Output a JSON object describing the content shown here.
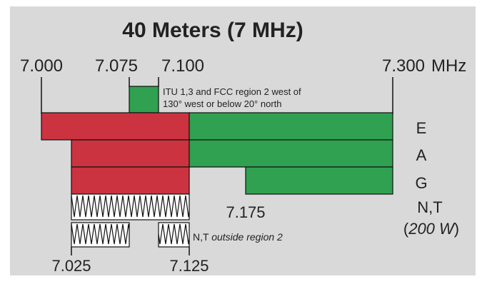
{
  "title": "40 Meters (7 MHz)",
  "unit": "MHz",
  "colors": {
    "background": "#d9d9d9",
    "red": "#cc3340",
    "green": "#2fa150",
    "text": "#222222",
    "border": "#111111"
  },
  "frequency_labels": {
    "f7000": "7.000",
    "f7075": "7.075",
    "f7100": "7.100",
    "f7300": "7.300",
    "f7025": "7.025",
    "f7125": "7.125",
    "f7175": "7.175"
  },
  "itu_note": {
    "line1": "ITU 1,3 and FCC region 2 west of",
    "line2": "130° west or below 20° north"
  },
  "classes": {
    "E": "E",
    "A": "A",
    "G": "G",
    "NT": "N,T",
    "NT_power_open": "(",
    "NT_power": "200 W",
    "NT_power_close": ")"
  },
  "nt_outside": {
    "prefix": "N,T ",
    "italic": "outside region 2"
  }
}
